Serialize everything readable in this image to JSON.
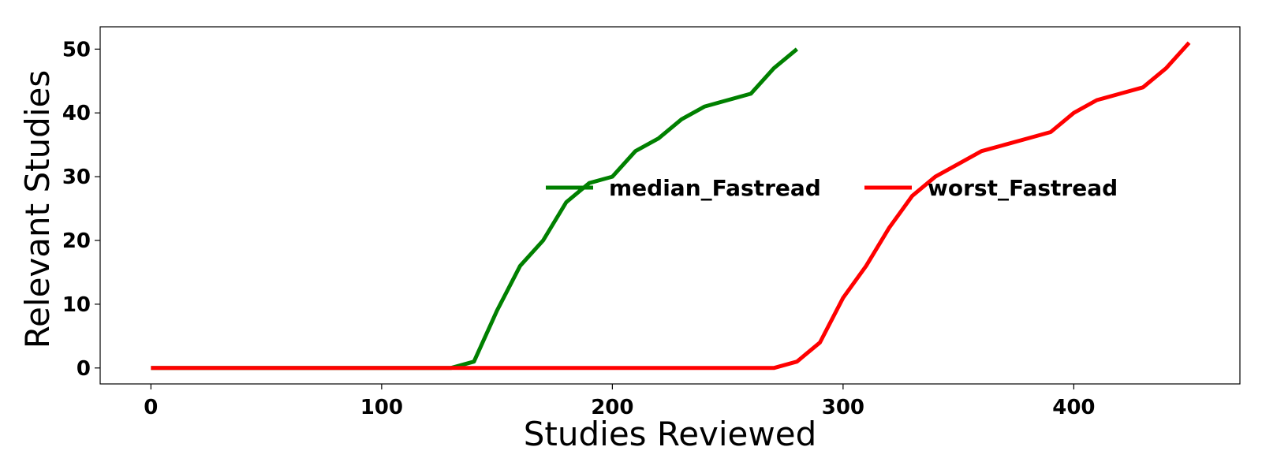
{
  "chart_data": {
    "type": "line",
    "title": "",
    "xlabel": "Studies Reviewed",
    "ylabel": "Relevant Studies",
    "xlim": [
      -22,
      472
    ],
    "ylim": [
      -2.5,
      53.5
    ],
    "xticks": [
      0,
      100,
      200,
      300,
      400
    ],
    "yticks": [
      0,
      10,
      20,
      30,
      40,
      50
    ],
    "grid": false,
    "legend_position": "center-right",
    "series": [
      {
        "name": "median_Fastread",
        "color": "#008000",
        "x": [
          0,
          130,
          140,
          150,
          160,
          170,
          180,
          190,
          200,
          210,
          220,
          230,
          240,
          250,
          260,
          270,
          280
        ],
        "y": [
          0,
          0,
          1,
          9,
          16,
          20,
          26,
          29,
          30,
          34,
          36,
          39,
          41,
          42,
          43,
          47,
          50
        ]
      },
      {
        "name": "worst_Fastread",
        "color": "#ff0000",
        "x": [
          0,
          270,
          280,
          290,
          300,
          310,
          320,
          330,
          340,
          350,
          360,
          370,
          380,
          390,
          400,
          410,
          420,
          430,
          440,
          450
        ],
        "y": [
          0,
          0,
          1,
          4,
          11,
          16,
          22,
          27,
          30,
          32,
          34,
          35,
          36,
          37,
          40,
          42,
          43,
          44,
          47,
          51
        ]
      }
    ]
  }
}
